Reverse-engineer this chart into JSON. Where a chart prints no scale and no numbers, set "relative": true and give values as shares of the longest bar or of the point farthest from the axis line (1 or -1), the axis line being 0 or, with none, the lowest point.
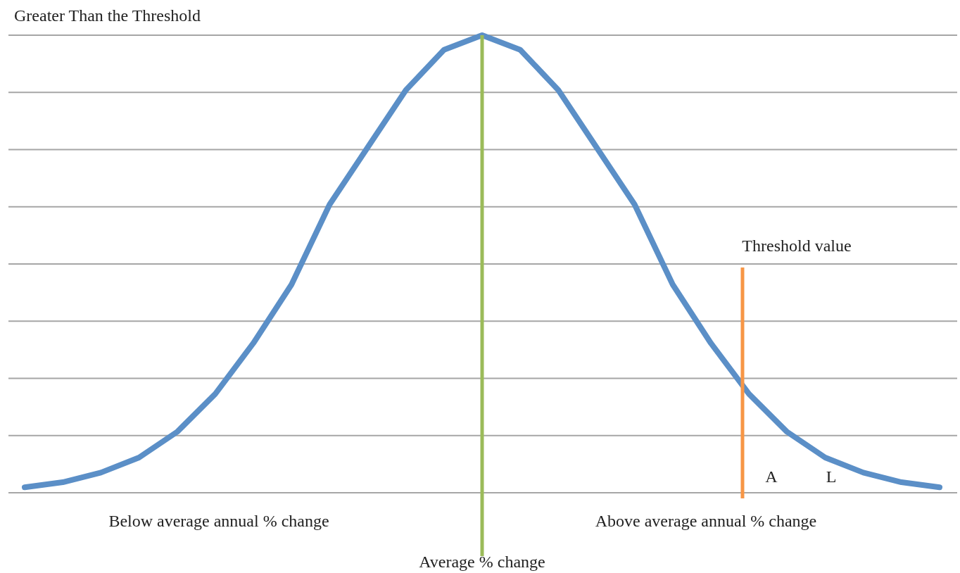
{
  "chart_data": {
    "type": "line",
    "title": "Greater Than the Threshold",
    "relative": true,
    "grid": "y",
    "marker": "none",
    "line_style": "solid",
    "categories": [
      null,
      null,
      null,
      null,
      null,
      null,
      null,
      null,
      null,
      null,
      null,
      null,
      null,
      null,
      null,
      null,
      null,
      null,
      null,
      null,
      null,
      null,
      null,
      null,
      null
    ],
    "series": [
      {
        "color": "#5b8fc7",
        "values": [
          0.012,
          0.023,
          0.044,
          0.077,
          0.133,
          0.216,
          0.327,
          0.455,
          0.63,
          0.755,
          0.88,
          0.968,
          1,
          0.968,
          0.88,
          0.755,
          0.63,
          0.455,
          0.327,
          0.216,
          0.133,
          0.077,
          0.044,
          0.023,
          0.012
        ]
      }
    ],
    "annotations": [
      "Below average annual % change",
      "Above average annual % change",
      "A",
      "L",
      "Average % change",
      "Threshold value"
    ]
  }
}
